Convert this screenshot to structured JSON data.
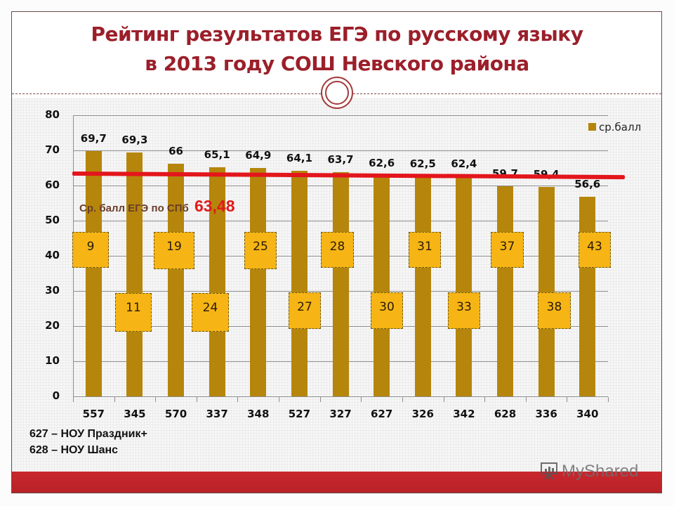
{
  "slide": {
    "title_line1": "Рейтинг результатов ЕГЭ по русскому языку",
    "title_line2": "в 2013 году СОШ Невского района"
  },
  "chart_data": {
    "type": "bar",
    "title": "Рейтинг результатов ЕГЭ по русскому языку в 2013 году СОШ Невского района",
    "xlabel": "",
    "ylabel": "",
    "ylim": [
      0,
      80
    ],
    "yticks": [
      "0",
      "10",
      "20",
      "30",
      "40",
      "50",
      "60",
      "70",
      "80"
    ],
    "grid": true,
    "legend_position": "top-right",
    "categories": [
      "557",
      "345",
      "570",
      "337",
      "348",
      "527",
      "327",
      "627",
      "326",
      "342",
      "628",
      "336",
      "340"
    ],
    "series": [
      {
        "name": "ср.балл",
        "color": "#b5860b",
        "values": [
          69.7,
          69.3,
          66,
          65.1,
          64.9,
          64.1,
          63.7,
          62.6,
          62.5,
          62.4,
          59.7,
          59.4,
          56.6
        ],
        "labels": [
          "69,7",
          "69,3",
          "66",
          "65,1",
          "64,9",
          "64,1",
          "63,7",
          "62,6",
          "62,5",
          "62,4",
          "59,7",
          "59,4",
          "56,6"
        ]
      }
    ],
    "reference_line": {
      "label": "Ср. балл ЕГЭ по СПб",
      "value": 63.48,
      "value_label": "63,48",
      "color": "#e3161c"
    },
    "rank_annotations": [
      "9",
      "11",
      "19",
      "24",
      "25",
      "27",
      "28",
      "30",
      "31",
      "33",
      "37",
      "38",
      "43"
    ]
  },
  "notes": [
    "627 – НОУ  Праздник+",
    "628 – НОУ   Шанс"
  ],
  "watermark": "MyShared"
}
